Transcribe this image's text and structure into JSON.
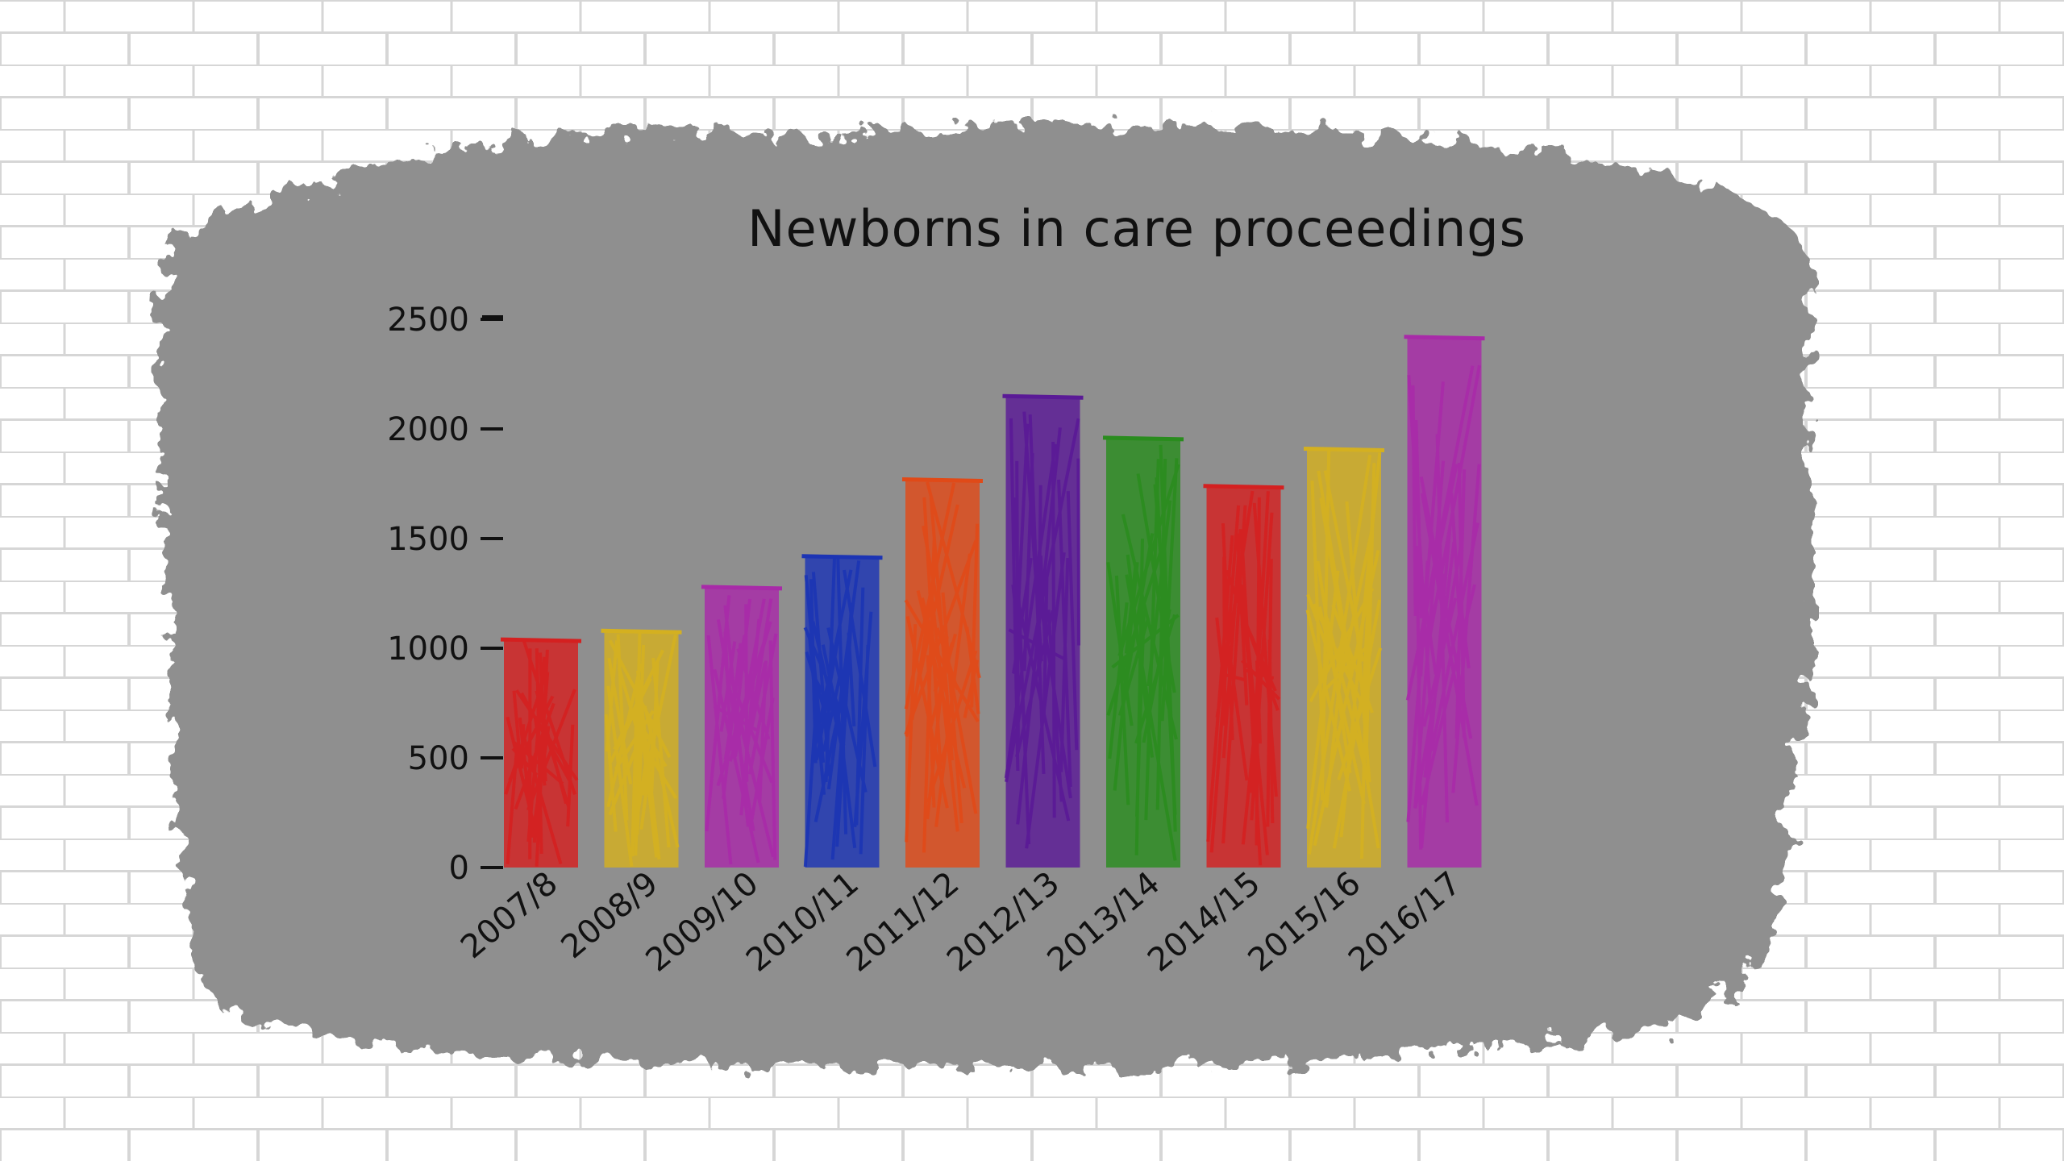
{
  "chart_data": {
    "type": "bar",
    "title": "Newborns in care proceedings",
    "xlabel": "",
    "ylabel": "",
    "ylim": [
      0,
      2500
    ],
    "yticks": [
      0,
      500,
      1000,
      1500,
      2000,
      2500
    ],
    "yticks_labels": [
      "0",
      "500",
      "1000",
      "1500",
      "2000",
      "2500"
    ],
    "grid": false,
    "legend": "none",
    "categories": [
      "2007/8",
      "2008/9",
      "2009/10",
      "2010/11",
      "2011/12",
      "2012/13",
      "2013/14",
      "2014/15",
      "2015/16",
      "2016/17"
    ],
    "values": [
      1040,
      1080,
      1280,
      1420,
      1770,
      2150,
      1960,
      1740,
      1910,
      2420
    ],
    "colors": [
      "#d42020",
      "#d4b020",
      "#a82aa8",
      "#1c34b4",
      "#e04a18",
      "#5a1a96",
      "#2a8c1e",
      "#d42020",
      "#d4b020",
      "#a82aa8"
    ]
  },
  "style": {
    "background": "#ffffff",
    "brick_line": "#d6d6d6",
    "panel": "#8f8f8f",
    "axis_color": "#111111"
  }
}
